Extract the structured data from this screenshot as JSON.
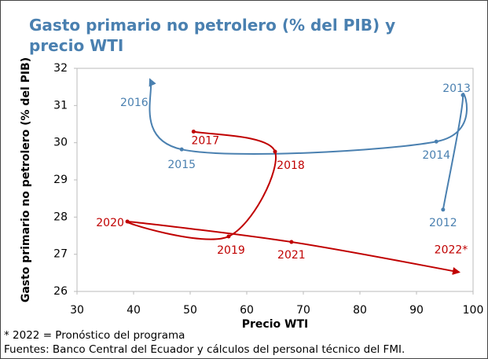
{
  "chart_data": {
    "type": "connected_scatter",
    "title": "Gasto primario no petrolero (% del PIB) y precio WTI",
    "x_label": "Precio WTI",
    "y_label": "Gasto primario no petrolero (% del PIB)",
    "xlim": [
      30,
      100
    ],
    "xticks": [
      30,
      40,
      50,
      60,
      70,
      80,
      90,
      100
    ],
    "ylim": [
      26,
      32
    ],
    "yticks": [
      26,
      27,
      28,
      29,
      30,
      31,
      32
    ],
    "series": [
      {
        "color": "#4a80b0",
        "x": [
          94.7,
          98.2,
          93.5,
          48.5,
          42.9
        ],
        "values": [
          28.2,
          31.28,
          30.03,
          29.82,
          31.7
        ],
        "point_labels": [
          "2012",
          "2013",
          "2014",
          "2015",
          "2016"
        ]
      },
      {
        "color": "#c00000",
        "x": [
          50.6,
          65,
          56.8,
          38.9,
          67.9,
          97.5
        ],
        "values": [
          30.3,
          29.76,
          27.48,
          27.88,
          27.33,
          26.52
        ],
        "point_labels": [
          "2017",
          "2018",
          "2019",
          "2020",
          "2021",
          "2022*"
        ]
      }
    ],
    "footnotes": [
      "* 2022  = Pronóstico del programa",
      "Fuentes: Banco Central del Ecuador y cálculos del personal técnico del FMI."
    ]
  }
}
